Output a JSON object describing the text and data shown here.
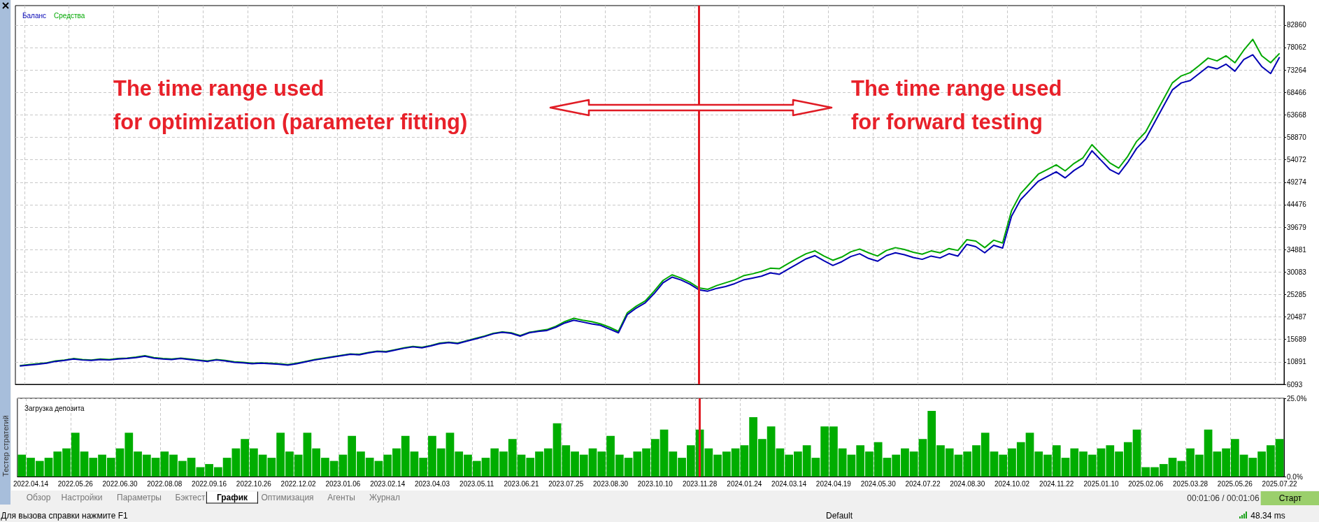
{
  "chart_data": [
    {
      "type": "line",
      "legend": "top left",
      "grid": true,
      "marker": "none",
      "line_style": "solid",
      "tick_labels": "y",
      "categories": [
        null,
        "2022.04.14",
        null,
        null,
        null,
        null,
        "2022.05.26",
        null,
        null,
        null,
        null,
        "2022.06.30",
        null,
        null,
        null,
        null,
        "2022.08.08",
        null,
        null,
        null,
        null,
        "2022.09.16",
        null,
        null,
        null,
        null,
        "2022.10.26",
        null,
        null,
        null,
        null,
        "2022.12.02",
        null,
        null,
        null,
        null,
        "2023.01.06",
        null,
        null,
        null,
        null,
        "2023.02.14",
        null,
        null,
        null,
        null,
        "2023.04.03",
        null,
        null,
        null,
        null,
        "2023.05.11",
        null,
        null,
        null,
        null,
        "2023.06.21",
        null,
        null,
        null,
        null,
        "2023.07.25",
        null,
        null,
        null,
        null,
        "2023.08.30",
        null,
        null,
        null,
        null,
        "2023.10.10",
        null,
        null,
        null,
        null,
        "2023.11.28",
        null,
        null,
        null,
        null,
        "2024.01.24",
        null,
        null,
        null,
        null,
        "2024.03.14",
        null,
        null,
        null,
        null,
        "2024.04.19",
        null,
        null,
        null,
        null,
        "2024.05.30",
        null,
        null,
        null,
        null,
        "2024.07.22",
        null,
        null,
        null,
        null,
        "2024.08.30",
        null,
        null,
        null,
        null,
        "2024.10.02",
        null,
        null,
        null,
        null,
        "2024.11.22",
        null,
        null,
        null,
        null,
        "2025.01.10",
        null,
        null,
        null,
        null,
        "2025.02.06",
        null,
        null,
        null,
        null,
        "2025.03.28",
        null,
        null,
        null,
        null,
        "2025.05.26",
        null,
        null,
        null,
        null,
        "2025.07.22"
      ],
      "ylim": [
        6093,
        87015
      ],
      "yticks": [
        6093,
        10891,
        15689,
        20487,
        25285,
        30083,
        34881,
        39679,
        44476,
        49274,
        54072,
        58870,
        63668,
        68466,
        73264,
        78062,
        82860
      ],
      "series": [
        {
          "name": "Средства",
          "color": "#00a800",
          "values": [
            10100,
            10300,
            10500,
            10700,
            11100,
            11300,
            11600,
            11400,
            11300,
            11500,
            11400,
            11600,
            11700,
            11900,
            12200,
            11800,
            11600,
            11500,
            11700,
            11500,
            11300,
            11100,
            11400,
            11200,
            10900,
            10800,
            10600,
            10700,
            10600,
            10500,
            10300,
            10600,
            11000,
            11400,
            11700,
            12000,
            12300,
            12600,
            12500,
            12900,
            13200,
            13100,
            13500,
            13900,
            14200,
            14000,
            14400,
            14900,
            15100,
            14900,
            15400,
            15900,
            16400,
            17000,
            17300,
            17100,
            16500,
            17200,
            17500,
            17800,
            18500,
            19500,
            20200,
            19800,
            19500,
            19000,
            18300,
            17400,
            21400,
            22800,
            23900,
            26000,
            28300,
            29500,
            28800,
            27900,
            26700,
            26400,
            27200,
            27800,
            28400,
            29300,
            29700,
            30200,
            30900,
            30800,
            31900,
            33000,
            34000,
            34600,
            33500,
            32600,
            33300,
            34400,
            35000,
            34200,
            33500,
            34700,
            35300,
            34900,
            34300,
            33900,
            34600,
            34200,
            35100,
            34700,
            37000,
            36700,
            35300,
            36900,
            36300,
            43200,
            46800,
            48900,
            51000,
            52000,
            53000,
            51700,
            53300,
            54500,
            57300,
            55300,
            53400,
            52300,
            54800,
            58000,
            60000,
            63500,
            67000,
            70500,
            72000,
            72700,
            74200,
            75800,
            75200,
            76300,
            74800,
            77500,
            79800,
            76300,
            74800,
            76800
          ]
        },
        {
          "name": "Баланс",
          "color": "#0000b4",
          "values": [
            10000,
            10200,
            10400,
            10600,
            11000,
            11200,
            11500,
            11300,
            11200,
            11400,
            11300,
            11500,
            11600,
            11800,
            12100,
            11700,
            11500,
            11400,
            11600,
            11400,
            11200,
            11000,
            11300,
            11100,
            10800,
            10700,
            10500,
            10600,
            10500,
            10400,
            10200,
            10500,
            10900,
            11300,
            11600,
            11900,
            12200,
            12500,
            12400,
            12800,
            13100,
            13000,
            13400,
            13800,
            14100,
            13900,
            14300,
            14800,
            15000,
            14800,
            15300,
            15800,
            16300,
            16900,
            17200,
            17000,
            16400,
            17100,
            17400,
            17600,
            18300,
            19200,
            19800,
            19400,
            19000,
            18700,
            17900,
            17100,
            21000,
            22400,
            23500,
            25500,
            27800,
            29000,
            28400,
            27500,
            26300,
            26000,
            26600,
            27000,
            27600,
            28400,
            28800,
            29200,
            29900,
            29600,
            30700,
            31800,
            32900,
            33600,
            32500,
            31500,
            32300,
            33400,
            34000,
            33000,
            32400,
            33600,
            34200,
            33800,
            33200,
            32800,
            33500,
            33100,
            34000,
            33500,
            36000,
            35500,
            34200,
            35800,
            35200,
            42000,
            45500,
            47500,
            49500,
            50500,
            51500,
            50200,
            51800,
            53000,
            56000,
            54000,
            52000,
            51000,
            53500,
            56500,
            58500,
            62000,
            65500,
            69000,
            70500,
            71000,
            72500,
            74000,
            73500,
            74500,
            73000,
            75500,
            76500,
            74000,
            72500,
            76000
          ]
        }
      ],
      "ref_lines": [
        {
          "axis": "x",
          "value": "2023.11.28",
          "color": "#e01b24"
        }
      ],
      "annotations": [
        "The time range used\nfor optimization (parameter fitting)",
        "The time range used\nfor forward testing"
      ]
    },
    {
      "type": "bar",
      "title": "Загрузка депозита",
      "grid": true,
      "categories": [
        null,
        "2022.04.14",
        null,
        null,
        null,
        null,
        "2022.05.26",
        null,
        null,
        null,
        null,
        "2022.06.30",
        null,
        null,
        null,
        null,
        "2022.08.08",
        null,
        null,
        null,
        null,
        "2022.09.16",
        null,
        null,
        null,
        null,
        "2022.10.26",
        null,
        null,
        null,
        null,
        "2022.12.02",
        null,
        null,
        null,
        null,
        "2023.01.06",
        null,
        null,
        null,
        null,
        "2023.02.14",
        null,
        null,
        null,
        null,
        "2023.04.03",
        null,
        null,
        null,
        null,
        "2023.05.11",
        null,
        null,
        null,
        null,
        "2023.06.21",
        null,
        null,
        null,
        null,
        "2023.07.25",
        null,
        null,
        null,
        null,
        "2023.08.30",
        null,
        null,
        null,
        null,
        "2023.10.10",
        null,
        null,
        null,
        null,
        "2023.11.28",
        null,
        null,
        null,
        null,
        "2024.01.24",
        null,
        null,
        null,
        null,
        "2024.03.14",
        null,
        null,
        null,
        null,
        "2024.04.19",
        null,
        null,
        null,
        null,
        "2024.05.30",
        null,
        null,
        null,
        null,
        "2024.07.22",
        null,
        null,
        null,
        null,
        "2024.08.30",
        null,
        null,
        null,
        null,
        "2024.10.02",
        null,
        null,
        null,
        null,
        "2024.11.22",
        null,
        null,
        null,
        null,
        "2025.01.10",
        null,
        null,
        null,
        null,
        "2025.02.06",
        null,
        null,
        null,
        null,
        "2025.03.28",
        null,
        null,
        null,
        null,
        "2025.05.26",
        null,
        null,
        null,
        null,
        "2025.07.22"
      ],
      "ylim": [
        0,
        25
      ],
      "yticks": [
        {
          "value": 0,
          "label": "0.0%"
        },
        {
          "value": 25,
          "label": "25.0%"
        }
      ],
      "series": [
        {
          "color": "#00ad00",
          "values": [
            7,
            6,
            5,
            6,
            8,
            9,
            14,
            8,
            6,
            7,
            6,
            9,
            14,
            8,
            7,
            6,
            8,
            7,
            5,
            6,
            3,
            4,
            3,
            6,
            9,
            12,
            9,
            7,
            6,
            14,
            8,
            7,
            14,
            9,
            6,
            5,
            7,
            13,
            8,
            6,
            5,
            7,
            9,
            13,
            8,
            6,
            13,
            9,
            14,
            8,
            7,
            5,
            6,
            9,
            8,
            12,
            7,
            6,
            8,
            9,
            17,
            10,
            8,
            7,
            9,
            8,
            13,
            7,
            6,
            8,
            9,
            12,
            15,
            8,
            6,
            10,
            15,
            9,
            7,
            8,
            9,
            10,
            19,
            12,
            16,
            9,
            7,
            8,
            10,
            6,
            16,
            16,
            9,
            7,
            10,
            8,
            11,
            6,
            7,
            9,
            8,
            12,
            21,
            10,
            9,
            7,
            8,
            10,
            14,
            8,
            7,
            9,
            11,
            14,
            8,
            7,
            10,
            6,
            9,
            8,
            7,
            9,
            10,
            8,
            11,
            15,
            3,
            3,
            4,
            6,
            5,
            9,
            7,
            15,
            8,
            9,
            12,
            7,
            6,
            8,
            10,
            12
          ]
        }
      ],
      "ref_lines": [
        {
          "axis": "x",
          "value": "2023.11.28",
          "color": "#e01b24"
        }
      ]
    },
    {
      "type": "other",
      "annotations": [
        "Тестер стратегий",
        "Обзор",
        "Настройки",
        "Параметры",
        "Бэктест",
        "График",
        "Оптимизация",
        "Агенты",
        "Журнал",
        "00:01:06 / 00:01:06",
        "Старт",
        "Для вызова справки нажмите F1",
        "Default",
        "48.34 ms"
      ]
    }
  ]
}
